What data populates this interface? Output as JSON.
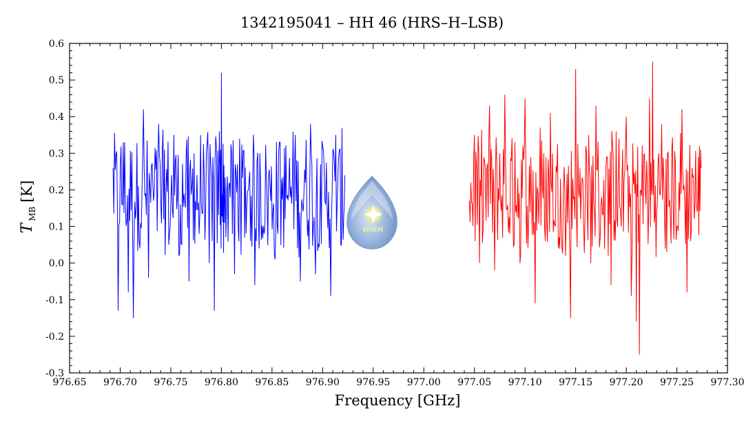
{
  "chart_data": {
    "type": "line",
    "title": "1342195041 – HH 46 (HRS–H–LSB)",
    "xlabel": "Frequency [GHz]",
    "ylabel_main": "T",
    "ylabel_sub": "MB",
    "ylabel_unit": "[K]",
    "xlim": [
      976.65,
      977.3
    ],
    "ylim": [
      -0.3,
      0.6
    ],
    "x_ticks": [
      "976.65",
      "976.70",
      "976.75",
      "976.80",
      "976.85",
      "976.90",
      "976.95",
      "977.00",
      "977.05",
      "977.10",
      "977.15",
      "977.20",
      "977.25",
      "977.30"
    ],
    "y_ticks": [
      "0.6",
      "0.5",
      "0.4",
      "0.3",
      "0.2",
      "0.1",
      "0.0",
      "-0.1",
      "-0.2",
      "-0.3"
    ],
    "grid": false,
    "series": [
      {
        "color": "#0000ff",
        "x": [
          976.693,
          976.698,
          976.703,
          976.708,
          976.713,
          976.718,
          976.723,
          976.728,
          976.733,
          976.738,
          976.743,
          976.748,
          976.753,
          976.758,
          976.763,
          976.768,
          976.773,
          976.778,
          976.783,
          976.788,
          976.793,
          976.798,
          976.8,
          976.803,
          976.808,
          976.813,
          976.818,
          976.823,
          976.828,
          976.833,
          976.838,
          976.843,
          976.848,
          976.853,
          976.858,
          976.863,
          976.868,
          976.873,
          976.878,
          976.883,
          976.888,
          976.893,
          976.898,
          976.903,
          976.908,
          976.913,
          976.918,
          976.922
        ],
        "values": [
          0.26,
          -0.13,
          0.33,
          -0.08,
          -0.15,
          0.21,
          0.42,
          -0.04,
          0.17,
          0.38,
          0.12,
          0.05,
          0.35,
          0.02,
          0.19,
          -0.05,
          0.3,
          0.08,
          0.24,
          0.0,
          -0.13,
          0.36,
          0.52,
          0.11,
          0.22,
          -0.03,
          0.34,
          0.07,
          0.25,
          -0.06,
          0.3,
          0.1,
          0.21,
          0.01,
          0.33,
          0.12,
          0.18,
          0.35,
          -0.05,
          0.22,
          0.38,
          -0.03,
          0.27,
          0.16,
          -0.09,
          0.35,
          0.05,
          0.24
        ]
      },
      {
        "color": "#ff0000",
        "x": [
          977.045,
          977.05,
          977.055,
          977.06,
          977.065,
          977.07,
          977.075,
          977.08,
          977.085,
          977.09,
          977.095,
          977.1,
          977.105,
          977.11,
          977.115,
          977.12,
          977.125,
          977.13,
          977.135,
          977.14,
          977.145,
          977.15,
          977.155,
          977.16,
          977.165,
          977.17,
          977.175,
          977.18,
          977.185,
          977.19,
          977.195,
          977.2,
          977.205,
          977.21,
          977.213,
          977.218,
          977.223,
          977.226,
          977.23,
          977.235,
          977.24,
          977.245,
          977.25,
          977.255,
          977.26,
          977.265,
          977.27,
          977.274
        ],
        "values": [
          0.17,
          0.35,
          0.0,
          0.28,
          0.43,
          -0.02,
          0.3,
          0.46,
          0.08,
          0.33,
          0.0,
          0.45,
          0.14,
          -0.11,
          0.37,
          0.06,
          0.41,
          0.1,
          0.23,
          0.02,
          -0.15,
          0.53,
          0.12,
          0.32,
          0.0,
          0.43,
          0.16,
          0.27,
          -0.06,
          0.36,
          0.1,
          0.4,
          -0.09,
          -0.16,
          -0.25,
          0.3,
          0.45,
          0.55,
          0.14,
          0.38,
          0.03,
          0.31,
          0.1,
          0.42,
          -0.08,
          0.26,
          0.14,
          0.26
        ]
      }
    ]
  },
  "logo": {
    "text": "WISH",
    "icon": "water-drop-star-icon"
  }
}
